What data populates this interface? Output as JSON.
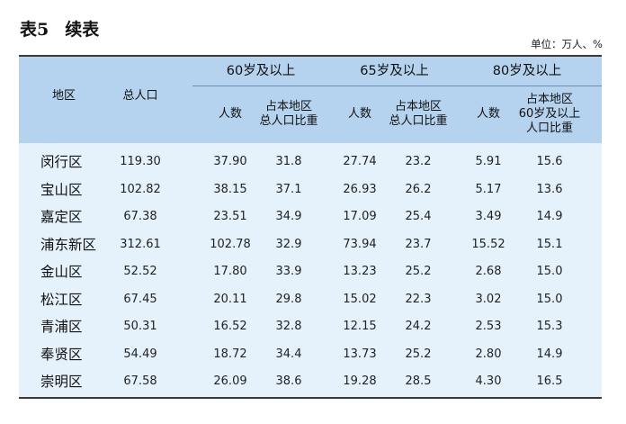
{
  "title": {
    "number": "表5",
    "text": "续表"
  },
  "unit": "单位：万人、%",
  "headers": {
    "region": "地区",
    "total_population": "总人口",
    "group_60": "60岁及以上",
    "group_65": "65岁及以上",
    "group_80": "80岁及以上",
    "count": "人数",
    "share_line1": "占本地区",
    "share_line2": "总人口比重",
    "share80_line1": "占本地区",
    "share80_line2": "60岁及以上",
    "share80_line3": "人口比重"
  },
  "rows": [
    {
      "district": "闵行区",
      "total": "119.30",
      "p60": "37.90",
      "s60": "31.8",
      "p65": "27.74",
      "s65": "23.2",
      "p80": "5.91",
      "s80": "15.6"
    },
    {
      "district": "宝山区",
      "total": "102.82",
      "p60": "38.15",
      "s60": "37.1",
      "p65": "26.93",
      "s65": "26.2",
      "p80": "5.17",
      "s80": "13.6"
    },
    {
      "district": "嘉定区",
      "total": "67.38",
      "p60": "23.51",
      "s60": "34.9",
      "p65": "17.09",
      "s65": "25.4",
      "p80": "3.49",
      "s80": "14.9"
    },
    {
      "district": "浦东新区",
      "total": "312.61",
      "p60": "102.78",
      "s60": "32.9",
      "p65": "73.94",
      "s65": "23.7",
      "p80": "15.52",
      "s80": "15.1"
    },
    {
      "district": "金山区",
      "total": "52.52",
      "p60": "17.80",
      "s60": "33.9",
      "p65": "13.23",
      "s65": "25.2",
      "p80": "2.68",
      "s80": "15.0"
    },
    {
      "district": "松江区",
      "total": "67.45",
      "p60": "20.11",
      "s60": "29.8",
      "p65": "15.02",
      "s65": "22.3",
      "p80": "3.02",
      "s80": "15.0"
    },
    {
      "district": "青浦区",
      "total": "50.31",
      "p60": "16.52",
      "s60": "32.8",
      "p65": "12.15",
      "s65": "24.2",
      "p80": "2.53",
      "s80": "15.3"
    },
    {
      "district": "奉贤区",
      "total": "54.49",
      "p60": "18.72",
      "s60": "34.4",
      "p65": "13.73",
      "s65": "25.2",
      "p80": "2.80",
      "s80": "14.9"
    },
    {
      "district": "崇明区",
      "total": "67.58",
      "p60": "26.09",
      "s60": "38.6",
      "p65": "19.28",
      "s65": "28.5",
      "p80": "4.30",
      "s80": "16.5"
    }
  ]
}
